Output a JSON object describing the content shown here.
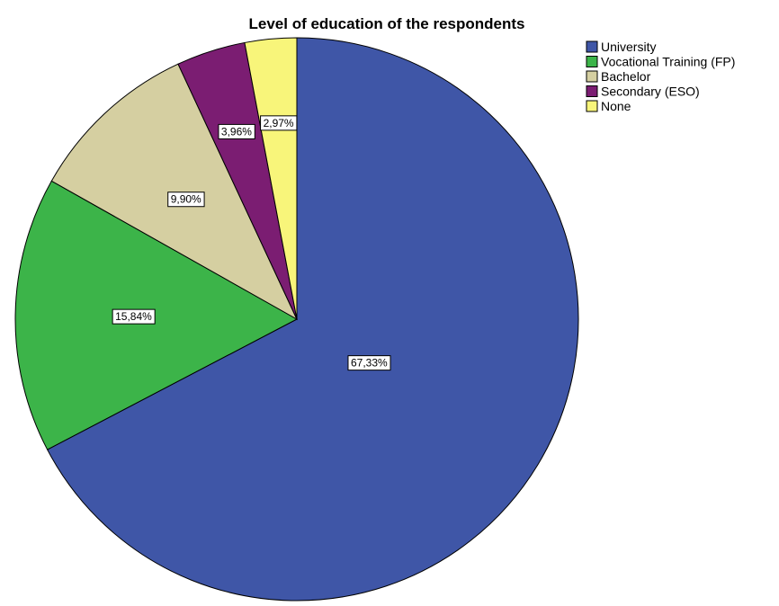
{
  "chart_data": {
    "type": "pie",
    "title": "Level of education of the respondents",
    "categories": [
      "University",
      "Vocational Training (FP)",
      "Bachelor",
      "Secondary (ESO)",
      "None"
    ],
    "values": [
      67.33,
      15.84,
      9.9,
      3.96,
      2.97
    ],
    "value_labels": [
      "67,33%",
      "15,84%",
      "9,90%",
      "3,96%",
      "2,97%"
    ],
    "colors": [
      "#3f56a7",
      "#3cb449",
      "#d5cfa1",
      "#7b1d72",
      "#f8f57a"
    ],
    "legend_position": "top-right",
    "start": "12 o'clock",
    "direction": "clockwise"
  }
}
